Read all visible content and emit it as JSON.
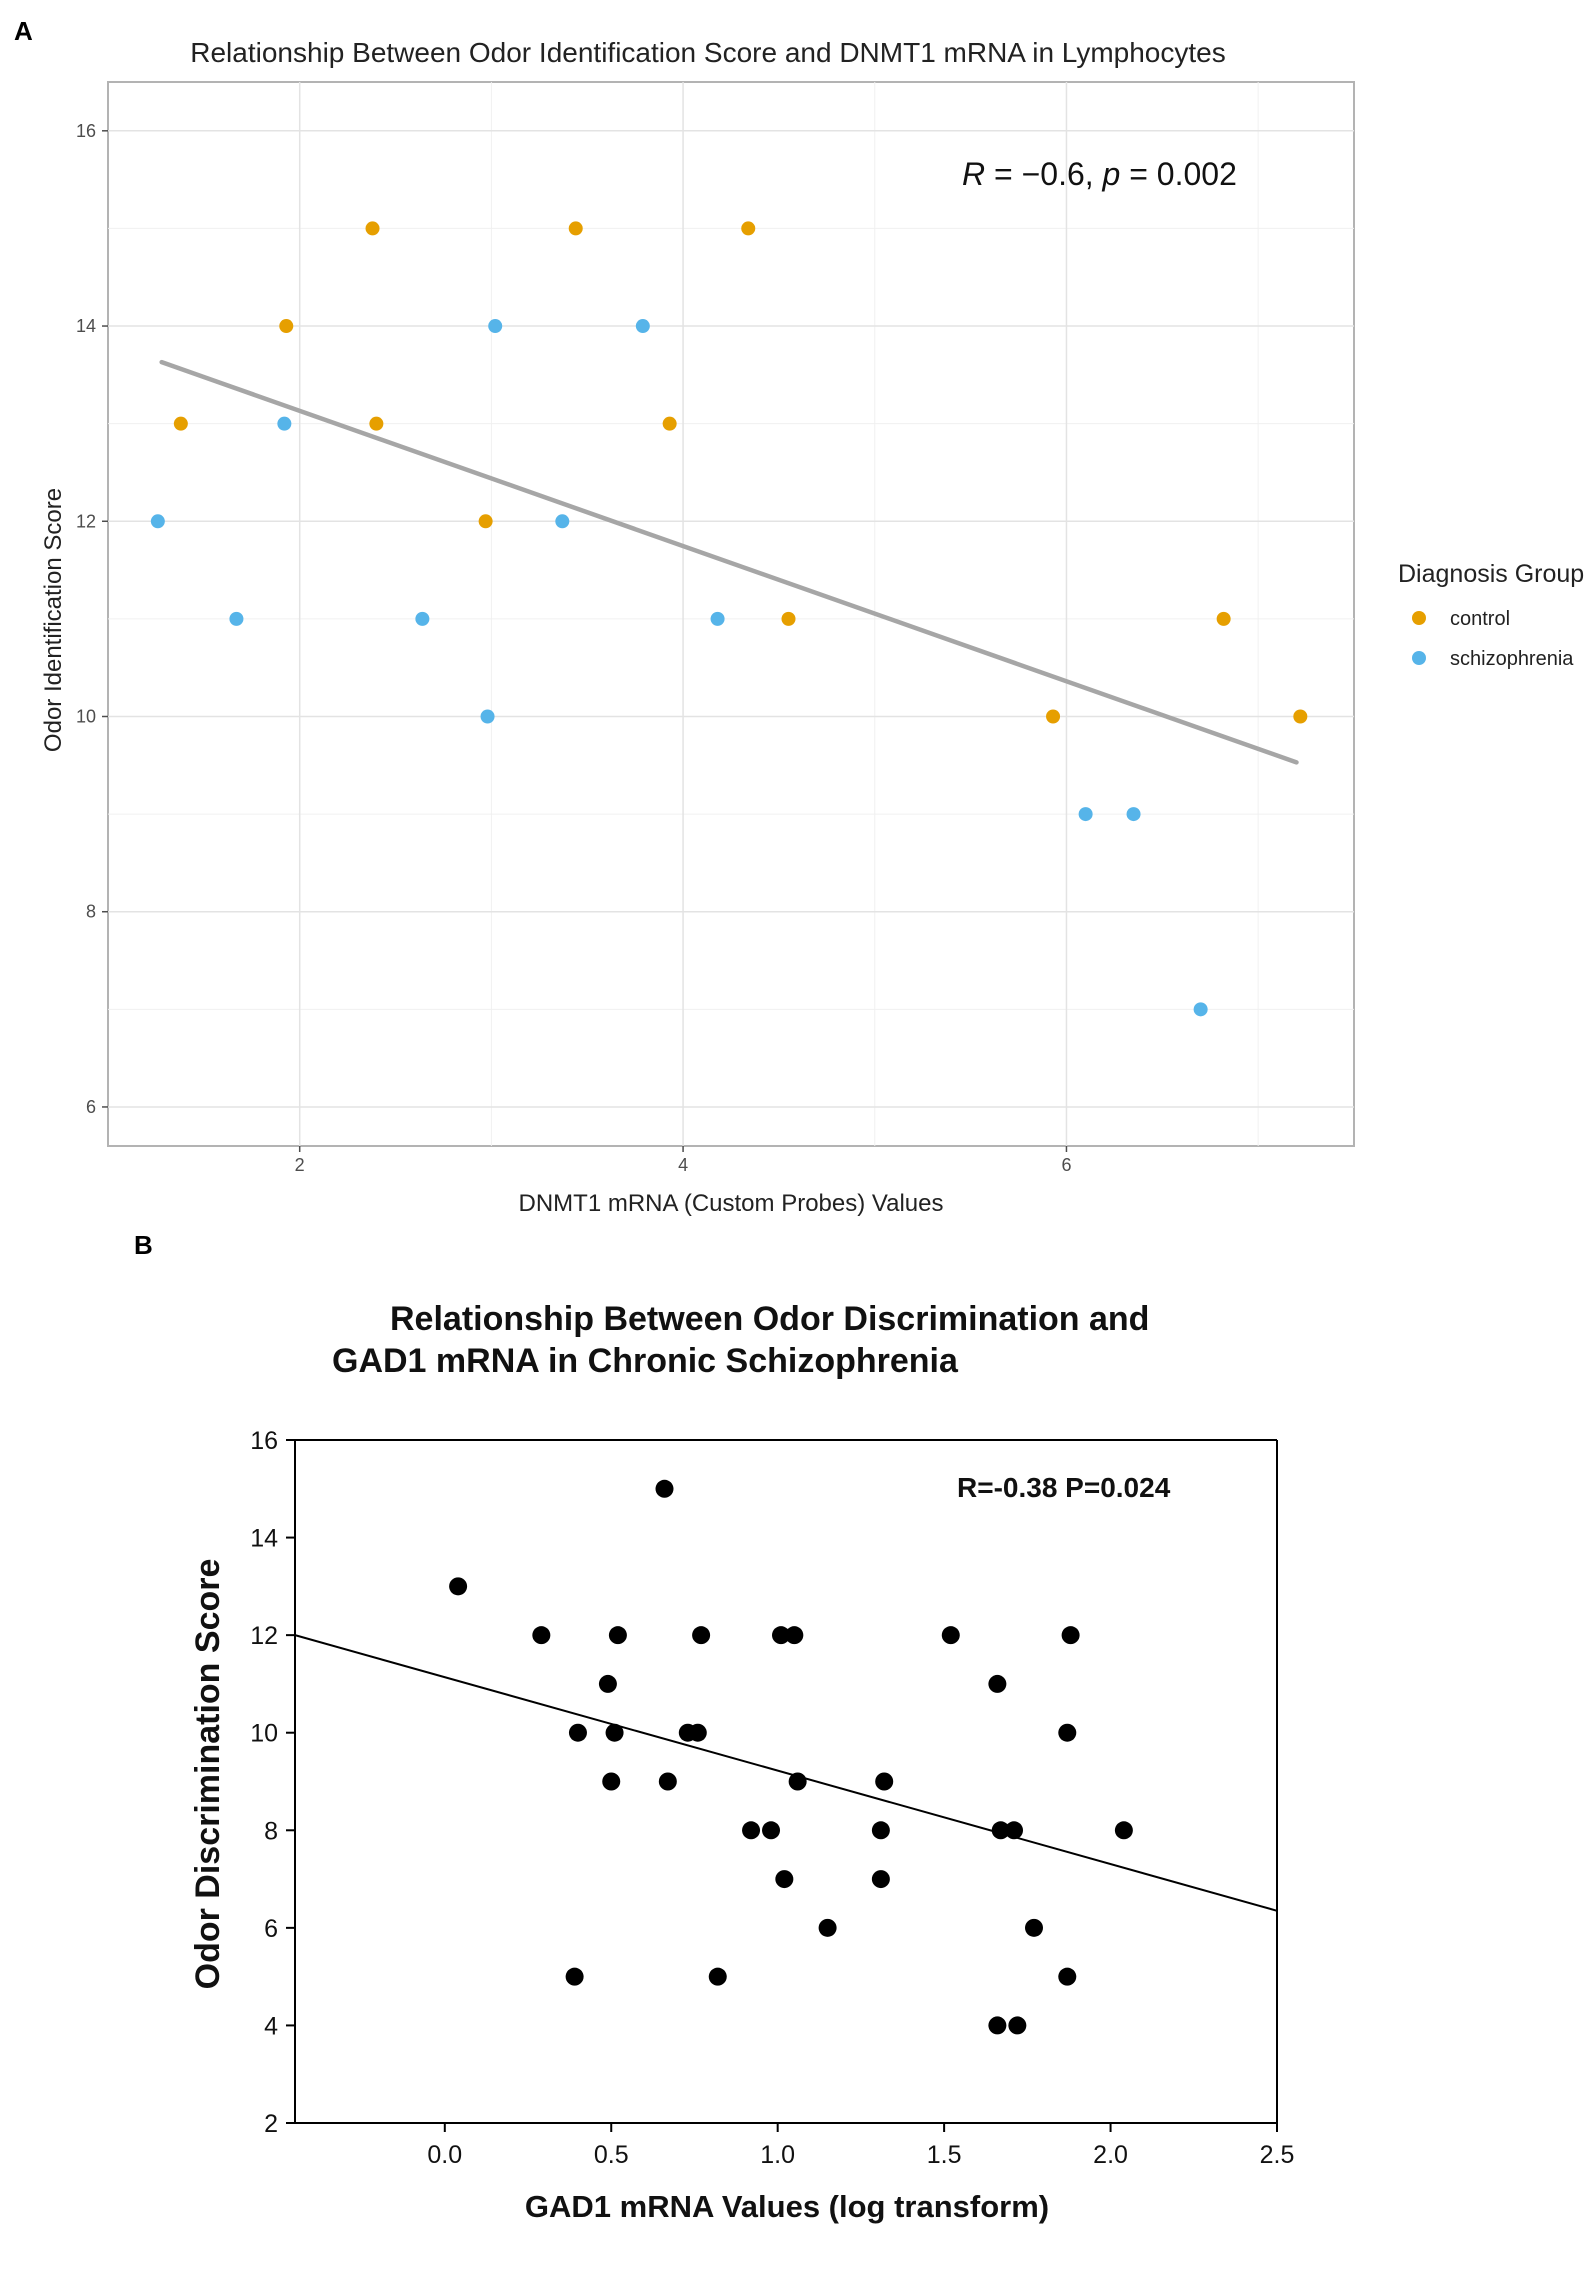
{
  "panel_a": {
    "letter": "A"
  },
  "panel_b": {
    "letter": "B"
  },
  "chart_data": [
    {
      "type": "scatter",
      "title": "Relationship Between Odor Identification Score and DNMT1 mRNA in Lymphocytes",
      "xlabel": "DNMT1 mRNA (Custom Probes) Values",
      "ylabel": "Odor Identification Score",
      "xlim": [
        1.0,
        7.5
      ],
      "ylim": [
        5.6,
        16.5
      ],
      "xticks": [
        2,
        4,
        6
      ],
      "yticks": [
        6,
        8,
        10,
        12,
        14,
        16
      ],
      "grid": true,
      "annotation": {
        "R": "R",
        "eq": " = −0.6, ",
        "p": "p",
        "p_eq": " = 0.002"
      },
      "legend": {
        "title": "Diagnosis Group",
        "position": "right"
      },
      "series": [
        {
          "name": "control",
          "color": "#E69F00",
          "points": [
            [
              1.38,
              13
            ],
            [
              1.93,
              14
            ],
            [
              2.38,
              15
            ],
            [
              2.4,
              13
            ],
            [
              2.97,
              12
            ],
            [
              3.44,
              15
            ],
            [
              3.93,
              13
            ],
            [
              4.34,
              15
            ],
            [
              4.55,
              11
            ],
            [
              5.93,
              10
            ],
            [
              6.82,
              11
            ],
            [
              7.22,
              10
            ]
          ]
        },
        {
          "name": "schizophrenia",
          "color": "#56B4E9",
          "points": [
            [
              1.26,
              12
            ],
            [
              1.67,
              11
            ],
            [
              1.92,
              13
            ],
            [
              2.64,
              11
            ],
            [
              2.98,
              10
            ],
            [
              3.02,
              14
            ],
            [
              3.37,
              12
            ],
            [
              3.79,
              14
            ],
            [
              4.18,
              11
            ],
            [
              6.1,
              9
            ],
            [
              6.35,
              9
            ],
            [
              6.7,
              7
            ]
          ]
        }
      ],
      "trend_line": {
        "color": "#a6a6a6",
        "x": [
          1.28,
          7.2
        ],
        "y": [
          13.63,
          9.53
        ]
      }
    },
    {
      "type": "scatter",
      "title_lines": [
        "Relationship Between Odor Discrimination and",
        "GAD1 mRNA in Chronic Schizophrenia"
      ],
      "xlabel": "GAD1 mRNA Values  (log transform)",
      "ylabel": "Odor Discrimination Score",
      "xlim": [
        -0.45,
        2.5
      ],
      "ylim": [
        2,
        16
      ],
      "xticks": [
        "0.0",
        "0.5",
        "1.0",
        "1.5",
        "2.0",
        "2.5"
      ],
      "yticks": [
        "2",
        "4",
        "6",
        "8",
        "10",
        "12",
        "14",
        "16"
      ],
      "grid": false,
      "annotation": "R=-0.38 P=0.024",
      "series": [
        {
          "name": "schizophrenia",
          "color": "#000000",
          "points": [
            [
              0.04,
              13
            ],
            [
              0.29,
              12
            ],
            [
              0.39,
              5
            ],
            [
              0.4,
              10
            ],
            [
              0.49,
              11
            ],
            [
              0.5,
              9
            ],
            [
              0.51,
              10
            ],
            [
              0.52,
              12
            ],
            [
              0.66,
              15
            ],
            [
              0.67,
              9
            ],
            [
              0.73,
              10
            ],
            [
              0.76,
              10
            ],
            [
              0.77,
              12
            ],
            [
              0.82,
              5
            ],
            [
              0.92,
              8
            ],
            [
              0.98,
              8
            ],
            [
              1.01,
              12
            ],
            [
              1.02,
              7
            ],
            [
              1.05,
              12
            ],
            [
              1.06,
              9
            ],
            [
              1.15,
              6
            ],
            [
              1.31,
              8
            ],
            [
              1.31,
              7
            ],
            [
              1.32,
              9
            ],
            [
              1.52,
              12
            ],
            [
              1.66,
              11
            ],
            [
              1.66,
              4
            ],
            [
              1.67,
              8
            ],
            [
              1.71,
              8
            ],
            [
              1.72,
              4
            ],
            [
              1.77,
              6
            ],
            [
              1.87,
              10
            ],
            [
              1.87,
              5
            ],
            [
              1.88,
              12
            ],
            [
              2.04,
              8
            ]
          ]
        }
      ],
      "trend_line": {
        "color": "#000000",
        "x": [
          -0.45,
          2.5
        ],
        "y": [
          12.0,
          6.35
        ]
      }
    }
  ]
}
